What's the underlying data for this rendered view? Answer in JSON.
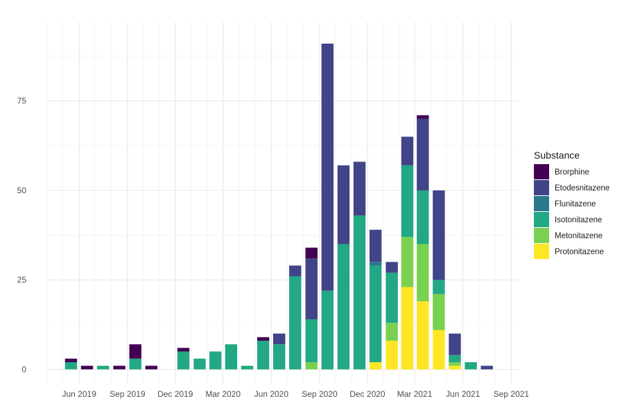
{
  "chart_data": {
    "type": "bar",
    "stacked": true,
    "x_type": "month",
    "x": [
      "2019-05",
      "2019-06",
      "2019-07",
      "2019-08",
      "2019-09",
      "2019-10",
      "2019-11",
      "2019-12",
      "2020-01",
      "2020-02",
      "2020-03",
      "2020-04",
      "2020-05",
      "2020-06",
      "2020-07",
      "2020-08",
      "2020-09",
      "2020-10",
      "2020-11",
      "2020-12",
      "2021-01",
      "2021-02",
      "2021-03",
      "2021-04",
      "2021-05",
      "2021-06",
      "2021-07"
    ],
    "xlim": [
      "2019-04-01",
      "2021-09-15"
    ],
    "ylim": [
      -4,
      97
    ],
    "x_ticks": [
      {
        "date": "2019-06-01",
        "label": "Jun 2019"
      },
      {
        "date": "2019-09-01",
        "label": "Sep 2019"
      },
      {
        "date": "2019-12-01",
        "label": "Dec 2019"
      },
      {
        "date": "2020-03-01",
        "label": "Mar 2020"
      },
      {
        "date": "2020-06-01",
        "label": "Jun 2020"
      },
      {
        "date": "2020-09-01",
        "label": "Sep 2020"
      },
      {
        "date": "2020-12-01",
        "label": "Dec 2020"
      },
      {
        "date": "2021-03-01",
        "label": "Mar 2021"
      },
      {
        "date": "2021-06-01",
        "label": "Jun 2021"
      },
      {
        "date": "2021-09-01",
        "label": "Sep 2021"
      }
    ],
    "y_ticks": [
      {
        "value": 0,
        "label": "0"
      },
      {
        "value": 25,
        "label": "25"
      },
      {
        "value": 50,
        "label": "50"
      },
      {
        "value": 75,
        "label": "75"
      }
    ],
    "grid": true,
    "legend": {
      "title": "Substance",
      "position": "right"
    },
    "series": [
      {
        "name": "Protonitazene",
        "color": "#FDE725",
        "values": [
          0,
          0,
          0,
          0,
          0,
          0,
          0,
          0,
          0,
          0,
          0,
          0,
          0,
          0,
          0,
          0,
          0,
          0,
          0,
          2,
          8,
          23,
          19,
          11,
          1,
          0,
          0
        ]
      },
      {
        "name": "Metonitazene",
        "color": "#7AD151",
        "values": [
          0,
          0,
          0,
          0,
          0,
          0,
          0,
          0,
          0,
          0,
          0,
          0,
          0,
          0,
          0,
          2,
          0,
          0,
          0,
          0,
          5,
          14,
          16,
          10,
          1,
          0,
          0
        ]
      },
      {
        "name": "Isotonitazene",
        "color": "#22A884",
        "values": [
          2,
          0,
          1,
          0,
          3,
          0,
          0,
          5,
          3,
          5,
          7,
          1,
          8,
          7,
          26,
          12,
          22,
          35,
          43,
          27,
          14,
          20,
          15,
          4,
          2,
          2,
          0
        ]
      },
      {
        "name": "Flunitazene",
        "color": "#2A788E",
        "values": [
          0,
          0,
          0,
          0,
          0,
          0,
          0,
          0,
          0,
          0,
          0,
          0,
          0,
          0,
          0,
          0,
          0,
          0,
          0,
          1,
          0,
          0,
          0,
          0,
          0,
          0,
          0
        ]
      },
      {
        "name": "Etodesnitazene",
        "color": "#414487",
        "values": [
          0,
          0,
          0,
          0,
          0,
          0,
          0,
          0,
          0,
          0,
          0,
          0,
          0,
          3,
          3,
          17,
          69,
          22,
          15,
          9,
          3,
          8,
          20,
          25,
          6,
          0,
          1
        ]
      },
      {
        "name": "Brorphine",
        "color": "#440154",
        "values": [
          1,
          1,
          0,
          1,
          4,
          1,
          0,
          1,
          0,
          0,
          0,
          0,
          1,
          0,
          0,
          3,
          0,
          0,
          0,
          0,
          0,
          0,
          1,
          0,
          0,
          0,
          0
        ]
      }
    ]
  }
}
